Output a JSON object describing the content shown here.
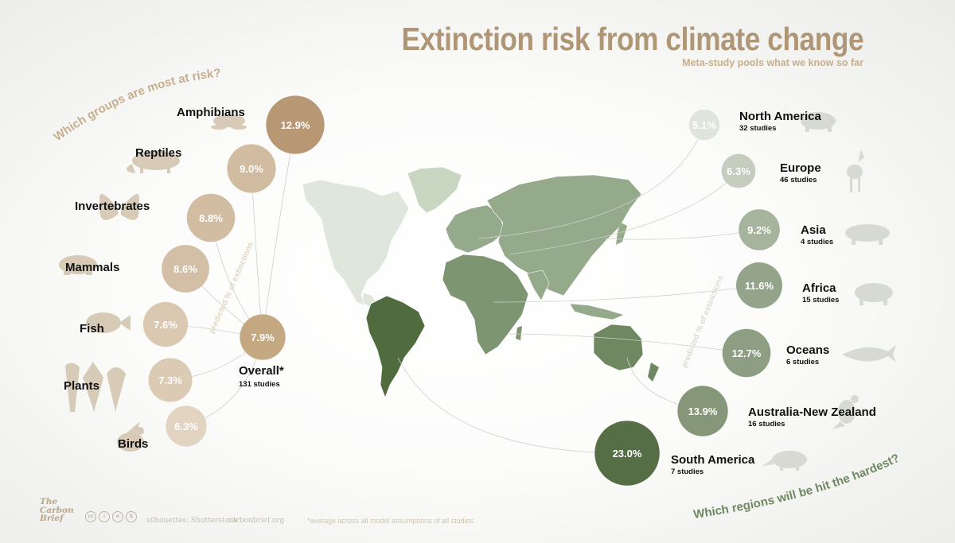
{
  "title": "Extinction risk from climate change",
  "subtitle": "Meta-study pools what we know so far",
  "left_heading": "Which groups are most at risk?",
  "right_heading": "Which regions will be hit the hardest?",
  "left_axis_note": "predicted % of extinctions",
  "right_axis_note": "predicted % of extinctions",
  "footnote": "*average across all model assumptions of all studies",
  "credits": {
    "silhouettes": "silhouettes: Shutterstock",
    "site": "carbonbrief.org"
  },
  "logo": {
    "line1": "The",
    "line2": "Carbon",
    "line3": "Brief"
  },
  "colors": {
    "tan": "#b89d7d",
    "green": "#566e45",
    "map_light": "#dfe6dc",
    "map_mid": "#95a98b",
    "map_dark": "#506b3d"
  },
  "chart_data": [
    {
      "type": "scatter",
      "title": "Which groups are most at risk?",
      "series": [
        {
          "name": "Amphibians",
          "value": 12.9,
          "label": "12.9%",
          "silhouette": "frog-icon"
        },
        {
          "name": "Reptiles",
          "value": 9.0,
          "label": "9.0%",
          "silhouette": "iguana-icon"
        },
        {
          "name": "Invertebrates",
          "value": 8.8,
          "label": "8.8%",
          "silhouette": "butterfly-icon"
        },
        {
          "name": "Mammals",
          "value": 8.6,
          "label": "8.6%",
          "silhouette": "bear-icon"
        },
        {
          "name": "Fish",
          "value": 7.6,
          "label": "7.6%",
          "silhouette": "fish-icon"
        },
        {
          "name": "Plants",
          "value": 7.3,
          "label": "7.3%",
          "silhouette": "trees-icon"
        },
        {
          "name": "Birds",
          "value": 6.3,
          "label": "6.3%",
          "silhouette": "bird-icon"
        }
      ],
      "overall": {
        "name": "Overall*",
        "value": 7.9,
        "label": "7.9%",
        "studies": "131 studies"
      }
    },
    {
      "type": "scatter",
      "title": "Which regions will be hit the hardest?",
      "series": [
        {
          "name": "North America",
          "value": 5.1,
          "label": "5.1%",
          "studies": "32 studies",
          "silhouette": "bison-icon"
        },
        {
          "name": "Europe",
          "value": 6.3,
          "label": "6.3%",
          "studies": "46 studies",
          "silhouette": "deer-icon"
        },
        {
          "name": "Asia",
          "value": 9.2,
          "label": "9.2%",
          "studies": "4 studies",
          "silhouette": "tiger-icon"
        },
        {
          "name": "Africa",
          "value": 11.6,
          "label": "11.6%",
          "studies": "15 studies",
          "silhouette": "hyena-icon"
        },
        {
          "name": "Oceans",
          "value": 12.7,
          "label": "12.7%",
          "studies": "6 studies",
          "silhouette": "whale-icon"
        },
        {
          "name": "Australia-New Zealand",
          "value": 13.9,
          "label": "13.9%",
          "studies": "16 studies",
          "silhouette": "kangaroo-icon"
        },
        {
          "name": "South America",
          "value": 23.0,
          "label": "23.0%",
          "studies": "7 studies",
          "silhouette": "anteater-icon"
        }
      ]
    }
  ]
}
